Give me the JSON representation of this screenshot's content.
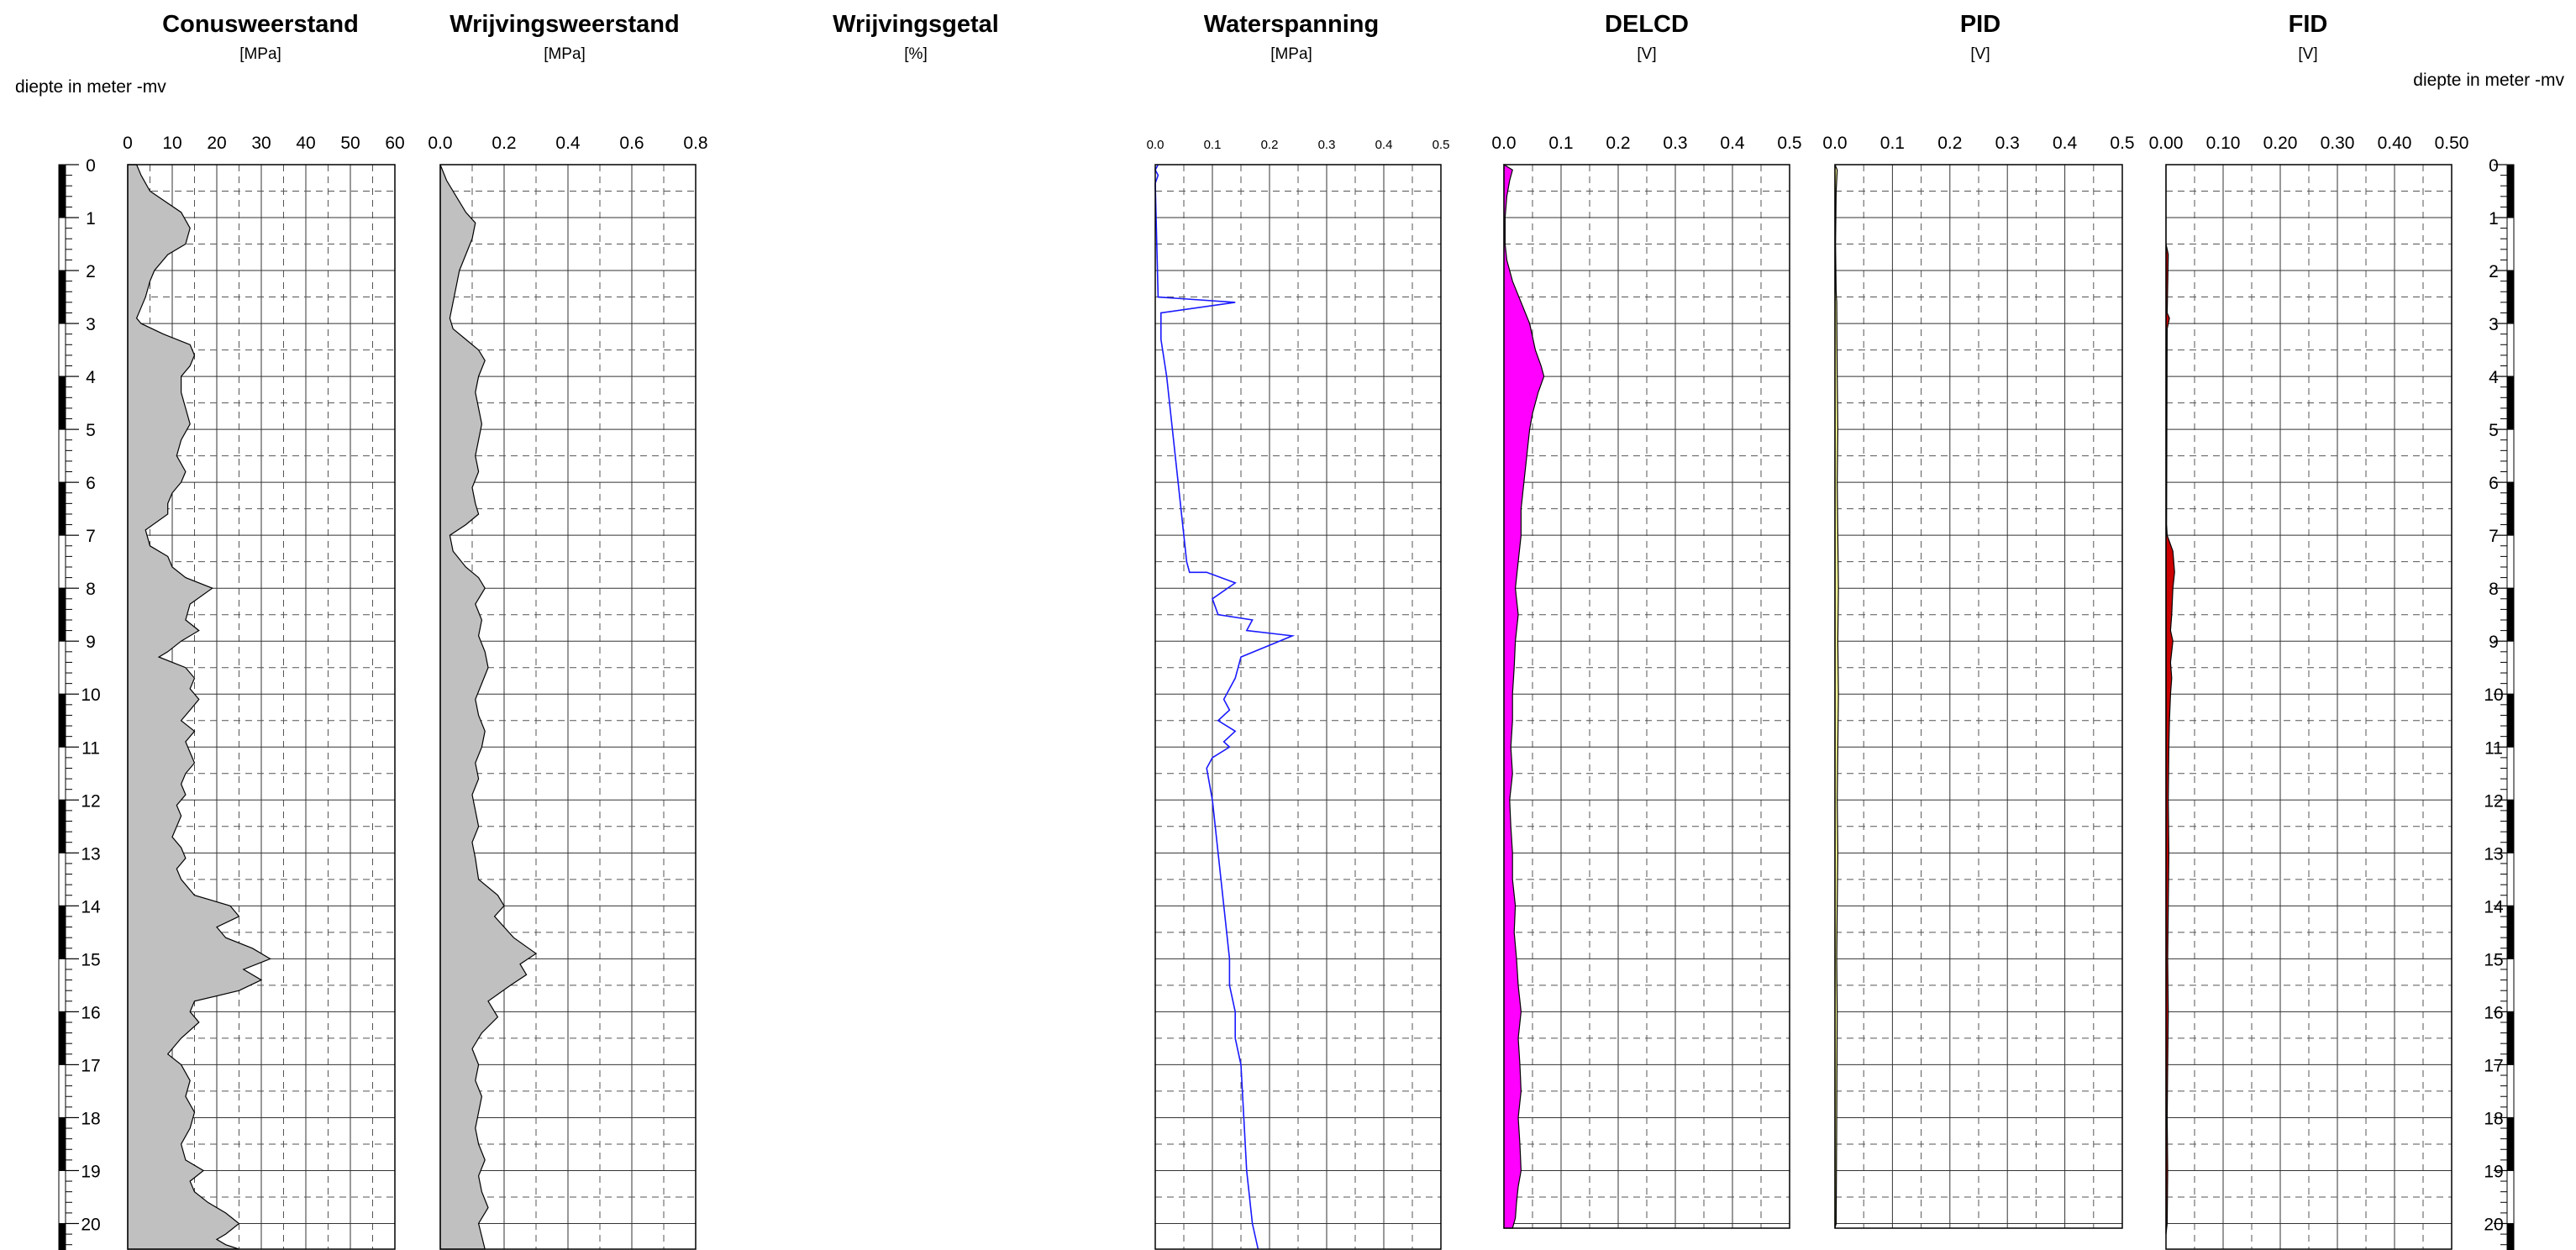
{
  "depth_axis": {
    "label_left": "diepte in meter -mv",
    "label_right": "diepte in meter -mv",
    "range": [
      0,
      20.5
    ],
    "ticks": [
      0,
      1,
      2,
      3,
      4,
      5,
      6,
      7,
      8,
      9,
      10,
      11,
      12,
      13,
      14,
      15,
      16,
      17,
      18,
      19,
      20
    ]
  },
  "chart_data": [
    {
      "type": "area",
      "title": "Conusweerstand",
      "unit": "[MPa]",
      "xlim": [
        0,
        60
      ],
      "xticks": [
        "0",
        "10",
        "20",
        "30",
        "40",
        "50",
        "60"
      ],
      "color": "#c0c0c0",
      "x": [
        2,
        3,
        5,
        12,
        14,
        13,
        9,
        6,
        5,
        4,
        3,
        2,
        3,
        8,
        14,
        15,
        14,
        12,
        12,
        13,
        14,
        12,
        11,
        13,
        12,
        10,
        9,
        9,
        4,
        5,
        9,
        10,
        13,
        19,
        14,
        13,
        16,
        12,
        9,
        7,
        13,
        15,
        14,
        16,
        14,
        12,
        15,
        13,
        14,
        15,
        13,
        12,
        13,
        11,
        12,
        11,
        10,
        12,
        13,
        11,
        12,
        15,
        23,
        25,
        20,
        22,
        28,
        32,
        26,
        30,
        25,
        15,
        14,
        16,
        12,
        9,
        12,
        14,
        13,
        15,
        14,
        12,
        13,
        17,
        14,
        15,
        18,
        22,
        25,
        22,
        20,
        22,
        25
      ],
      "y": [
        0,
        0.2,
        0.5,
        0.9,
        1.2,
        1.5,
        1.7,
        2.0,
        2.2,
        2.5,
        2.7,
        2.9,
        3.0,
        3.2,
        3.4,
        3.6,
        3.8,
        4.0,
        4.3,
        4.6,
        4.9,
        5.2,
        5.5,
        5.8,
        6.0,
        6.2,
        6.4,
        6.6,
        6.9,
        7.2,
        7.4,
        7.6,
        7.8,
        8.0,
        8.3,
        8.6,
        8.8,
        9.0,
        9.2,
        9.3,
        9.5,
        9.7,
        9.9,
        10.1,
        10.3,
        10.5,
        10.7,
        10.9,
        11.1,
        11.3,
        11.5,
        11.7,
        11.9,
        12.1,
        12.3,
        12.5,
        12.7,
        12.9,
        13.1,
        13.3,
        13.5,
        13.8,
        14.0,
        14.2,
        14.4,
        14.6,
        14.8,
        15.0,
        15.2,
        15.4,
        15.6,
        15.8,
        16.0,
        16.2,
        16.5,
        16.8,
        17.0,
        17.3,
        17.6,
        17.9,
        18.2,
        18.5,
        18.8,
        19.0,
        19.2,
        19.4,
        19.6,
        19.8,
        20.0,
        20.2,
        20.3,
        20.4,
        20.5
      ]
    },
    {
      "type": "area",
      "title": "Wrijvingsweerstand",
      "unit": "[MPa]",
      "xlim": [
        0,
        0.8
      ],
      "xticks": [
        "0.0",
        "0.2",
        "0.4",
        "0.6",
        "0.8"
      ],
      "color": "#c0c0c0",
      "x": [
        0,
        0.02,
        0.05,
        0.08,
        0.11,
        0.1,
        0.08,
        0.06,
        0.05,
        0.04,
        0.03,
        0.04,
        0.08,
        0.12,
        0.14,
        0.12,
        0.11,
        0.12,
        0.13,
        0.12,
        0.11,
        0.12,
        0.1,
        0.11,
        0.12,
        0.08,
        0.03,
        0.04,
        0.08,
        0.12,
        0.14,
        0.11,
        0.13,
        0.12,
        0.14,
        0.15,
        0.13,
        0.11,
        0.12,
        0.14,
        0.13,
        0.11,
        0.12,
        0.1,
        0.11,
        0.12,
        0.1,
        0.11,
        0.12,
        0.18,
        0.2,
        0.17,
        0.23,
        0.3,
        0.25,
        0.27,
        0.22,
        0.15,
        0.18,
        0.13,
        0.1,
        0.12,
        0.11,
        0.13,
        0.12,
        0.11,
        0.12,
        0.14,
        0.12,
        0.13,
        0.15,
        0.12,
        0.14
      ],
      "y": [
        0,
        0.3,
        0.6,
        0.9,
        1.1,
        1.4,
        1.7,
        2.0,
        2.3,
        2.6,
        2.9,
        3.1,
        3.3,
        3.5,
        3.7,
        4.0,
        4.3,
        4.6,
        4.9,
        5.2,
        5.5,
        5.8,
        6.1,
        6.4,
        6.6,
        6.8,
        7.0,
        7.3,
        7.6,
        7.8,
        8.0,
        8.3,
        8.6,
        8.9,
        9.2,
        9.5,
        9.8,
        10.1,
        10.4,
        10.7,
        11.0,
        11.3,
        11.6,
        11.9,
        12.2,
        12.5,
        12.8,
        13.1,
        13.5,
        13.8,
        14.0,
        14.2,
        14.6,
        14.9,
        15.1,
        15.3,
        15.5,
        15.8,
        16.1,
        16.4,
        16.7,
        17.0,
        17.3,
        17.6,
        17.9,
        18.2,
        18.5,
        18.8,
        19.1,
        19.4,
        19.7,
        20.0,
        20.5
      ]
    },
    {
      "type": "line",
      "title": "Wrijvingsgetal",
      "unit": "[%]",
      "x": [],
      "y": []
    },
    {
      "type": "line",
      "title": "Waterspanning",
      "unit": "[MPa]",
      "xlim": [
        0,
        0.5
      ],
      "xticks": [
        "0.0",
        "0.1",
        "0.2",
        "0.3",
        "0.4",
        "0.5"
      ],
      "color": "#1a1aff",
      "x": [
        0.005,
        0.0,
        0.005,
        0.0,
        0.005,
        0.14,
        0.01,
        0.01,
        0.02,
        0.03,
        0.04,
        0.05,
        0.055,
        0.06,
        0.09,
        0.14,
        0.1,
        0.11,
        0.17,
        0.16,
        0.24,
        0.15,
        0.14,
        0.12,
        0.13,
        0.11,
        0.14,
        0.12,
        0.13,
        0.1,
        0.09,
        0.1,
        0.11,
        0.12,
        0.13,
        0.13,
        0.14,
        0.14,
        0.15,
        0.155,
        0.16,
        0.17,
        0.18
      ],
      "y": [
        0,
        0.1,
        0.2,
        0.35,
        2.5,
        2.6,
        2.8,
        3.3,
        4.0,
        5.0,
        6.0,
        7.0,
        7.5,
        7.7,
        7.7,
        7.9,
        8.2,
        8.5,
        8.6,
        8.8,
        8.9,
        9.3,
        9.7,
        10.1,
        10.3,
        10.5,
        10.7,
        10.9,
        11.0,
        11.2,
        11.4,
        12.0,
        13.0,
        14.0,
        15.0,
        15.5,
        16.0,
        16.5,
        17.0,
        18.0,
        19.0,
        20.0,
        20.5
      ]
    },
    {
      "type": "area",
      "title": "DELCD",
      "unit": "[V]",
      "xlim": [
        0,
        0.5
      ],
      "xticks": [
        "0.0",
        "0.1",
        "0.2",
        "0.3",
        "0.4",
        "0.5"
      ],
      "color": "#ff00ff",
      "x": [
        0,
        0.015,
        0.01,
        0.005,
        0.002,
        0.002,
        0.005,
        0.015,
        0.03,
        0.045,
        0.055,
        0.065,
        0.07,
        0.06,
        0.05,
        0.045,
        0.04,
        0.035,
        0.03,
        0.03,
        0.025,
        0.02,
        0.025,
        0.02,
        0.018,
        0.015,
        0.015,
        0.012,
        0.015,
        0.01,
        0.012,
        0.015,
        0.015,
        0.02,
        0.018,
        0.022,
        0.025,
        0.03,
        0.025,
        0.028,
        0.03,
        0.025,
        0.028,
        0.03,
        0.025,
        0.022,
        0.02,
        0.015,
        0.01,
        0.0
      ],
      "y": [
        0,
        0.1,
        0.3,
        0.6,
        1.0,
        1.5,
        1.8,
        2.2,
        2.6,
        3.0,
        3.5,
        3.8,
        4.0,
        4.3,
        4.7,
        5.0,
        5.5,
        6.0,
        6.5,
        7.0,
        7.5,
        8.0,
        8.5,
        9.0,
        9.5,
        10.0,
        10.5,
        11.0,
        11.5,
        12.0,
        12.5,
        13.0,
        13.5,
        14.0,
        14.5,
        15.0,
        15.5,
        16.0,
        16.5,
        17.0,
        17.5,
        18.0,
        18.5,
        19.0,
        19.3,
        19.6,
        19.9,
        20.1,
        20.2,
        20.2
      ]
    },
    {
      "type": "area",
      "title": "PID",
      "unit": "[V]",
      "xlim": [
        0,
        0.5
      ],
      "xticks": [
        "0.0",
        "0.1",
        "0.2",
        "0.3",
        "0.4",
        "0.5"
      ],
      "color": "#ffff99",
      "x": [
        0,
        0.004,
        0.002,
        0.001,
        0.002,
        0.003,
        0.004,
        0.005,
        0.004,
        0.005,
        0.006,
        0.005,
        0.006,
        0.005,
        0.004,
        0.005,
        0.004,
        0.003,
        0.004,
        0.003,
        0.002,
        0.0
      ],
      "y": [
        0,
        0.1,
        0.5,
        1.5,
        2.4,
        2.6,
        4.0,
        5.0,
        6.0,
        7.0,
        8.0,
        9.0,
        10.0,
        11.0,
        12.0,
        13.0,
        14.0,
        15.0,
        16.0,
        18.0,
        20.0,
        20.2
      ]
    },
    {
      "type": "area",
      "title": "FID",
      "unit": "[V]",
      "xlim": [
        0,
        0.5
      ],
      "xticks": [
        "0.00",
        "0.10",
        "0.20",
        "0.30",
        "0.40",
        "0.50"
      ],
      "color": "#cc0000",
      "x": [
        0,
        0.0,
        0.002,
        0.004,
        0.002,
        0.006,
        0.002,
        0.001,
        0.002,
        0.012,
        0.015,
        0.012,
        0.01,
        0.008,
        0.012,
        0.008,
        0.01,
        0.008,
        0.006,
        0.005,
        0.004,
        0.005,
        0.004,
        0.003,
        0.004,
        0.003,
        0.002,
        0.003,
        0.002,
        0.0
      ],
      "y": [
        0,
        1.5,
        1.6,
        1.7,
        2.8,
        2.9,
        3.1,
        6.8,
        7.0,
        7.3,
        7.7,
        8.0,
        8.5,
        8.8,
        9.0,
        9.4,
        9.7,
        10.0,
        10.5,
        11.0,
        12.0,
        13.0,
        14.0,
        15.0,
        16.0,
        17.0,
        18.0,
        19.0,
        20.0,
        20.2
      ]
    }
  ]
}
